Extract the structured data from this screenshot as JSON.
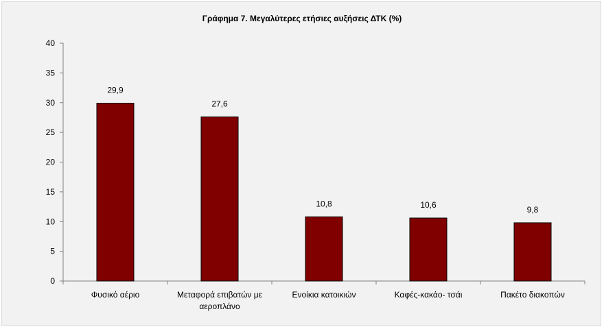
{
  "chart_data": {
    "type": "bar",
    "title": "Γράφημα 7. Μεγαλύτερες ετήσιες αυξήσεις ΔΤΚ (%)",
    "categories": [
      [
        "Φυσικό αέριο"
      ],
      [
        "Μεταφορά επιβατών με",
        "αεροπλάνο"
      ],
      [
        "Ενοίκια κατοικιών"
      ],
      [
        "Καφές-κακάο- τσάι"
      ],
      [
        "Πακέτο διακοπών"
      ]
    ],
    "values": [
      29.9,
      27.6,
      10.8,
      10.6,
      9.8
    ],
    "value_labels": [
      "29,9",
      "27,6",
      "10,8",
      "10,6",
      "9,8"
    ],
    "ylim": [
      0,
      40
    ],
    "yticks": [
      0,
      5,
      10,
      15,
      20,
      25,
      30,
      35,
      40
    ],
    "xlabel": "",
    "ylabel": "",
    "grid": false,
    "legend": "none",
    "bar_color": "#800000",
    "bar_border_color": "#000000"
  }
}
